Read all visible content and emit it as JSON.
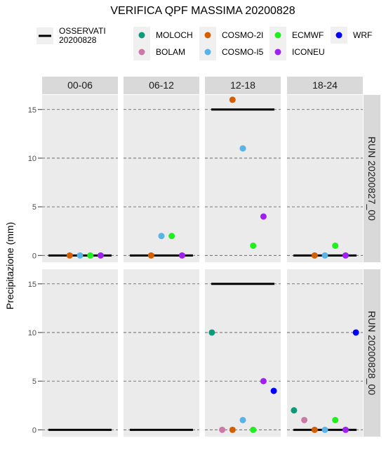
{
  "chart_data": {
    "type": "scatter",
    "title": "VERIFICA QPF MASSIMA 20200828",
    "ylabel": "Precipitazione (mm)",
    "ylim": [
      -0.7,
      16.5
    ],
    "y_ticks": [
      0,
      5,
      10,
      15
    ],
    "grid": "dashed horizontal",
    "facet_columns": [
      "00-06",
      "06-12",
      "12-18",
      "18-24"
    ],
    "facet_rows": [
      "RUN 20200827_00",
      "RUN 20200828_00"
    ],
    "observed": {
      "label": "OSSERVATI\n20200828",
      "color": "#000000",
      "values": [
        0,
        0,
        15,
        0
      ]
    },
    "legend": [
      {
        "name": "MOLOCH",
        "color": "#0b9b7b"
      },
      {
        "name": "BOLAM",
        "color": "#cc79a7"
      },
      {
        "name": "COSMO-2I",
        "color": "#d55e00"
      },
      {
        "name": "COSMO-I5",
        "color": "#56b4e9"
      },
      {
        "name": "ECMWF",
        "color": "#1ef01e"
      },
      {
        "name": "ICONEU",
        "color": "#a020f0"
      },
      {
        "name": "WRF",
        "color": "#0000ff"
      }
    ],
    "panels": [
      {
        "row": 0,
        "col": 0,
        "points": [
          {
            "model": "COSMO-2I",
            "x": 0.35,
            "y": 0
          },
          {
            "model": "COSMO-I5",
            "x": 0.5,
            "y": 0
          },
          {
            "model": "ECMWF",
            "x": 0.65,
            "y": 0
          },
          {
            "model": "ICONEU",
            "x": 0.8,
            "y": 0
          }
        ]
      },
      {
        "row": 0,
        "col": 1,
        "points": [
          {
            "model": "COSMO-2I",
            "x": 0.35,
            "y": 0
          },
          {
            "model": "COSMO-I5",
            "x": 0.5,
            "y": 2
          },
          {
            "model": "ECMWF",
            "x": 0.65,
            "y": 2
          },
          {
            "model": "ICONEU",
            "x": 0.8,
            "y": 0
          }
        ]
      },
      {
        "row": 0,
        "col": 2,
        "points": [
          {
            "model": "COSMO-2I",
            "x": 0.35,
            "y": 16
          },
          {
            "model": "COSMO-I5",
            "x": 0.5,
            "y": 11
          },
          {
            "model": "ECMWF",
            "x": 0.65,
            "y": 1
          },
          {
            "model": "ICONEU",
            "x": 0.8,
            "y": 4
          }
        ]
      },
      {
        "row": 0,
        "col": 3,
        "points": [
          {
            "model": "COSMO-2I",
            "x": 0.35,
            "y": 0
          },
          {
            "model": "COSMO-I5",
            "x": 0.5,
            "y": 0
          },
          {
            "model": "ECMWF",
            "x": 0.65,
            "y": 1
          },
          {
            "model": "ICONEU",
            "x": 0.8,
            "y": 0
          }
        ]
      },
      {
        "row": 1,
        "col": 0,
        "points": []
      },
      {
        "row": 1,
        "col": 1,
        "points": []
      },
      {
        "row": 1,
        "col": 2,
        "points": [
          {
            "model": "MOLOCH",
            "x": 0.05,
            "y": 10
          },
          {
            "model": "BOLAM",
            "x": 0.2,
            "y": 0
          },
          {
            "model": "COSMO-2I",
            "x": 0.35,
            "y": 0
          },
          {
            "model": "COSMO-I5",
            "x": 0.5,
            "y": 1
          },
          {
            "model": "ECMWF",
            "x": 0.65,
            "y": 0
          },
          {
            "model": "ICONEU",
            "x": 0.8,
            "y": 5
          },
          {
            "model": "WRF",
            "x": 0.95,
            "y": 4
          }
        ]
      },
      {
        "row": 1,
        "col": 3,
        "points": [
          {
            "model": "MOLOCH",
            "x": 0.05,
            "y": 2
          },
          {
            "model": "BOLAM",
            "x": 0.2,
            "y": 1
          },
          {
            "model": "COSMO-2I",
            "x": 0.35,
            "y": 0
          },
          {
            "model": "COSMO-I5",
            "x": 0.5,
            "y": 0
          },
          {
            "model": "ECMWF",
            "x": 0.65,
            "y": 1
          },
          {
            "model": "ICONEU",
            "x": 0.8,
            "y": 0
          },
          {
            "model": "WRF",
            "x": 0.95,
            "y": 10
          }
        ]
      }
    ]
  }
}
